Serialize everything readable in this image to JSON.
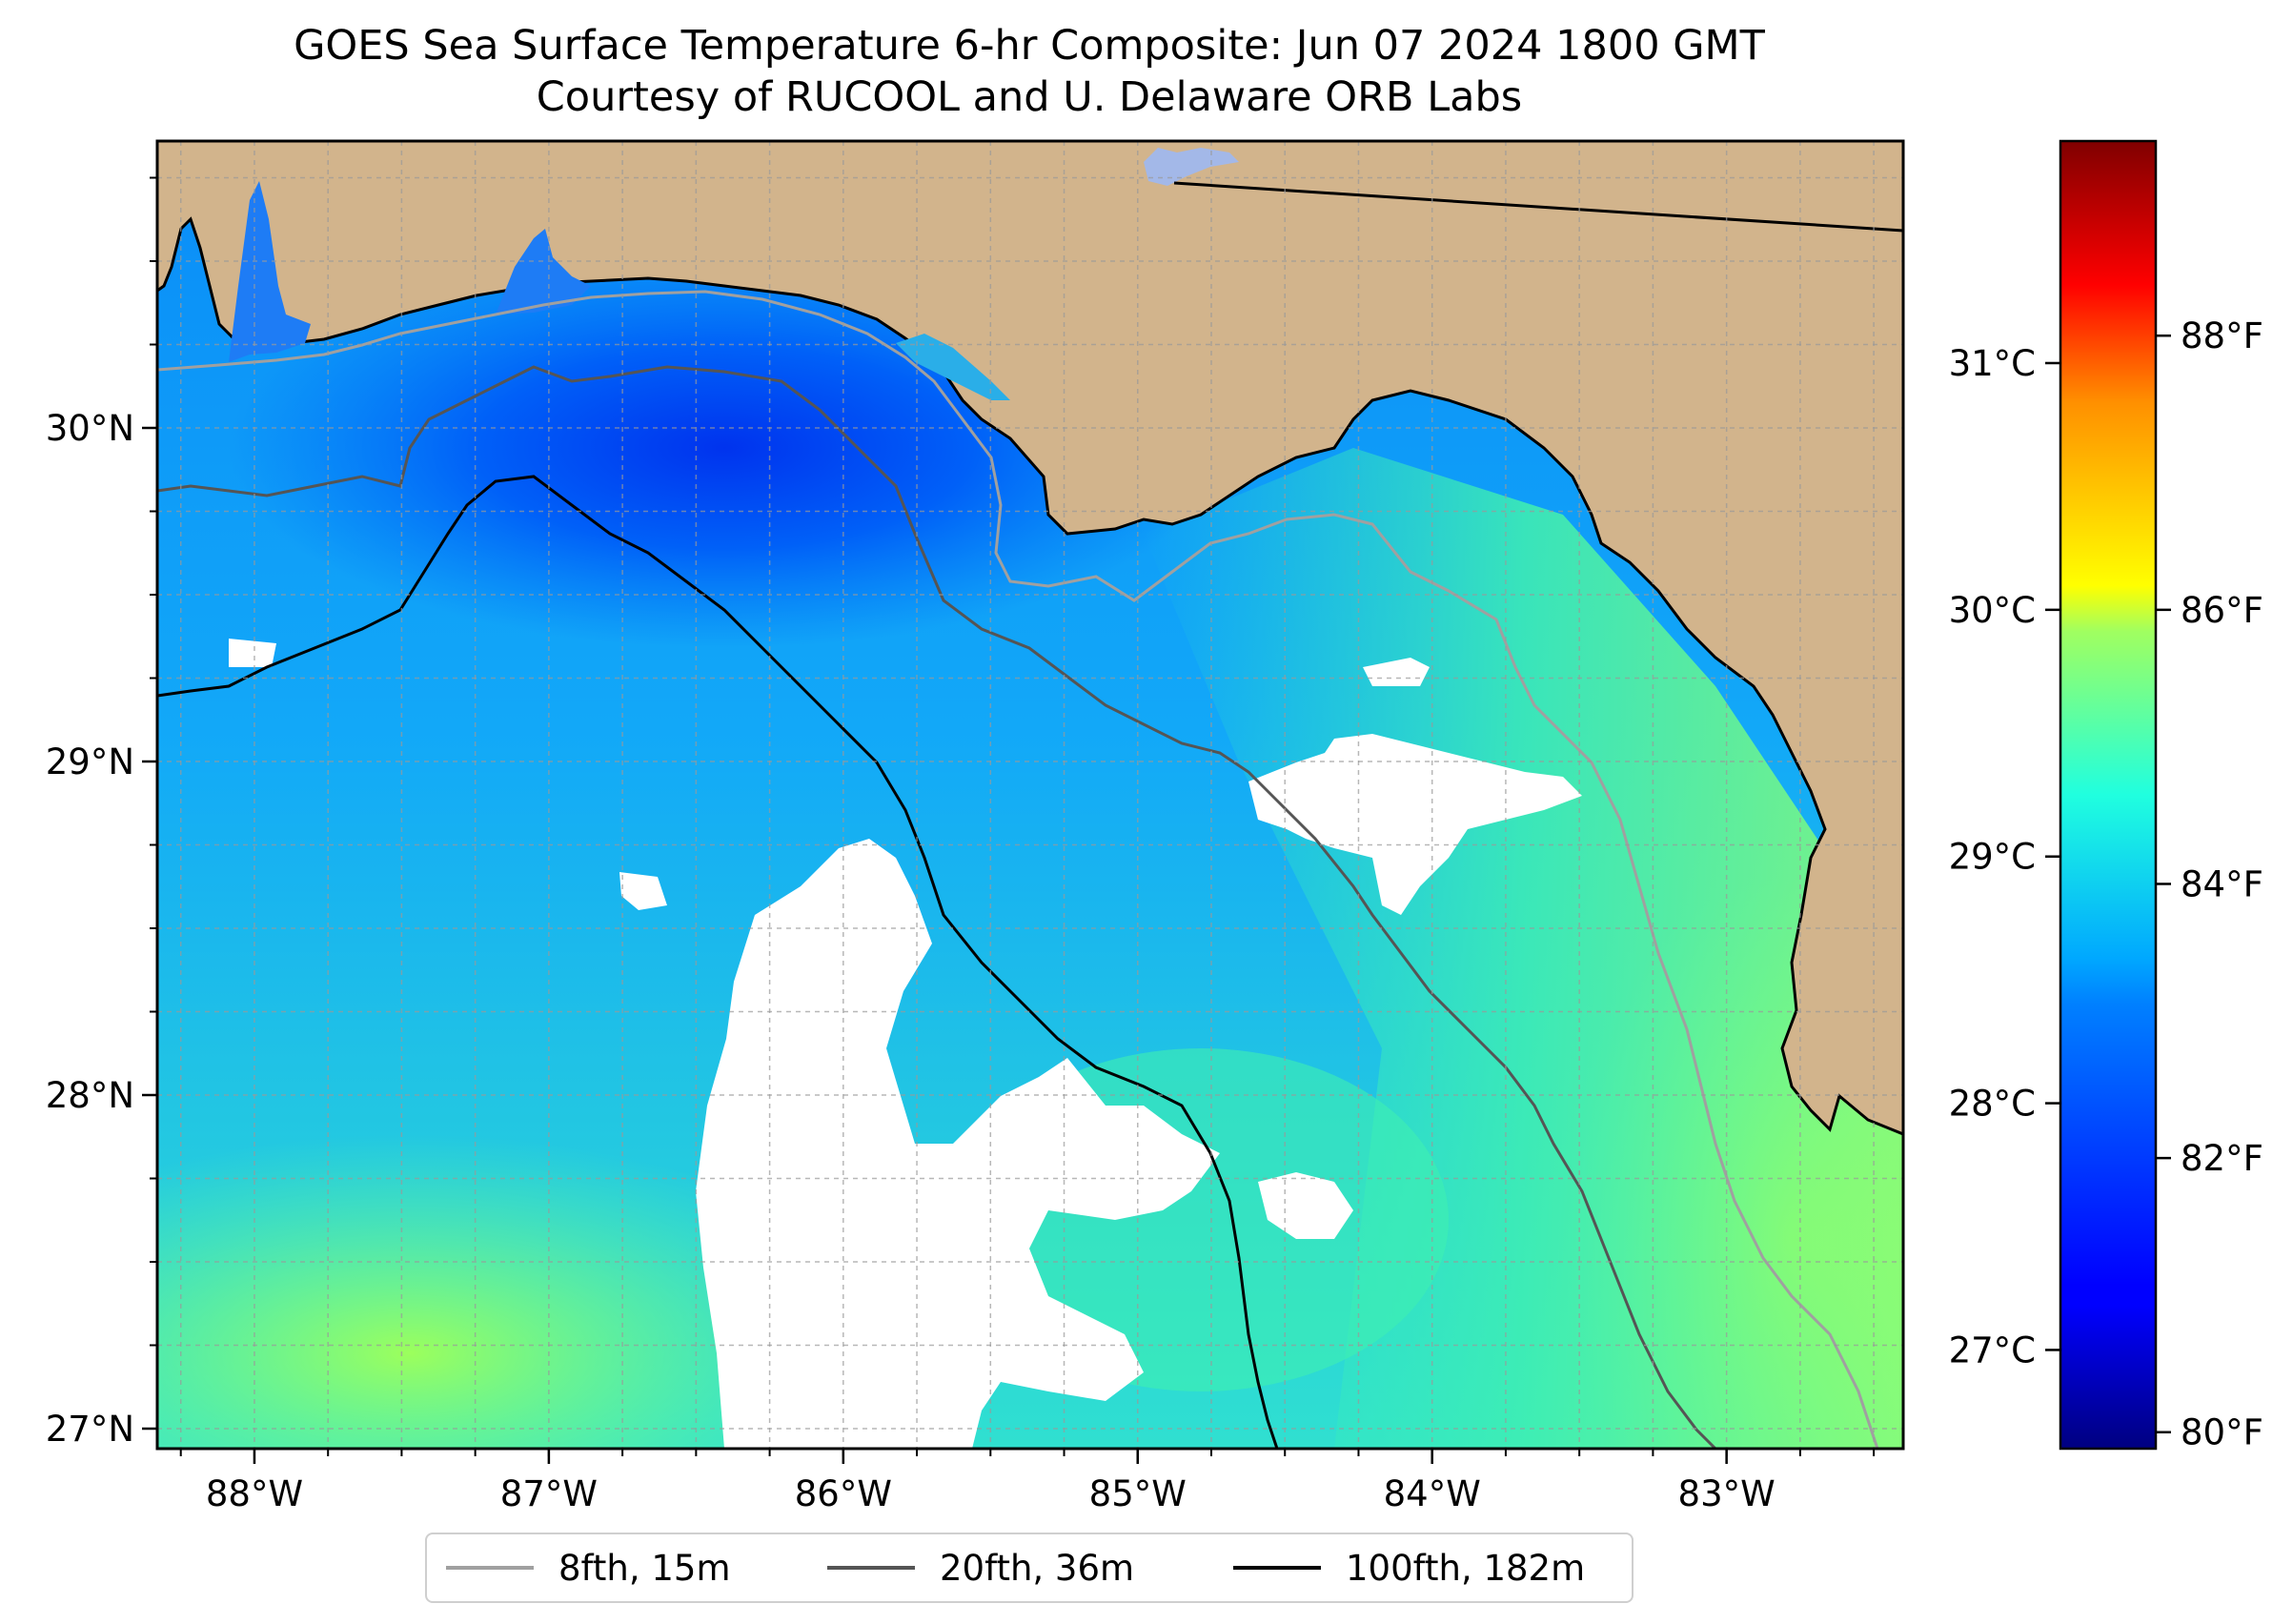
{
  "title": "GOES Sea Surface Temperature 6-hr Composite: Jun 07 2024 1800 GMT",
  "subtitle": "Courtesy of RUCOOL and U. Delaware ORB Labs",
  "map": {
    "lon_range": [
      -88.33,
      -82.4
    ],
    "lat_range": [
      26.94,
      30.86
    ],
    "lon_ticks": [
      {
        "v": -88,
        "label": "88°W"
      },
      {
        "v": -87,
        "label": "87°W"
      },
      {
        "v": -86,
        "label": "86°W"
      },
      {
        "v": -85,
        "label": "85°W"
      },
      {
        "v": -84,
        "label": "84°W"
      },
      {
        "v": -83,
        "label": "83°W"
      }
    ],
    "lat_ticks": [
      {
        "v": 27,
        "label": "27°N"
      },
      {
        "v": 28,
        "label": "28°N"
      },
      {
        "v": 29,
        "label": "29°N"
      },
      {
        "v": 30,
        "label": "30°N"
      }
    ],
    "grid_spacing_deg": 0.25,
    "colors": {
      "land": "#d2b48c",
      "ocean_mid": "#19bff2",
      "cloud": "#ffffff",
      "grid": "#9a9a9a",
      "lake": "#a3b8e8"
    }
  },
  "colorbar": {
    "colormap": "jet",
    "range_c": [
      26.6,
      31.9
    ],
    "celsius_ticks": [
      {
        "v": 27,
        "label": "27°C"
      },
      {
        "v": 28,
        "label": "28°C"
      },
      {
        "v": 29,
        "label": "29°C"
      },
      {
        "v": 30,
        "label": "30°C"
      },
      {
        "v": 31,
        "label": "31°C"
      }
    ],
    "fahrenheit_ticks": [
      {
        "v": 80,
        "label": "80°F"
      },
      {
        "v": 82,
        "label": "82°F"
      },
      {
        "v": 84,
        "label": "84°F"
      },
      {
        "v": 86,
        "label": "86°F"
      },
      {
        "v": 88,
        "label": "88°F"
      }
    ]
  },
  "legend": {
    "items": [
      {
        "label": "8fth, 15m",
        "color": "#a0a0a0"
      },
      {
        "label": "20fth, 36m",
        "color": "#555555"
      },
      {
        "label": "100fth, 182m",
        "color": "#000000"
      }
    ]
  }
}
